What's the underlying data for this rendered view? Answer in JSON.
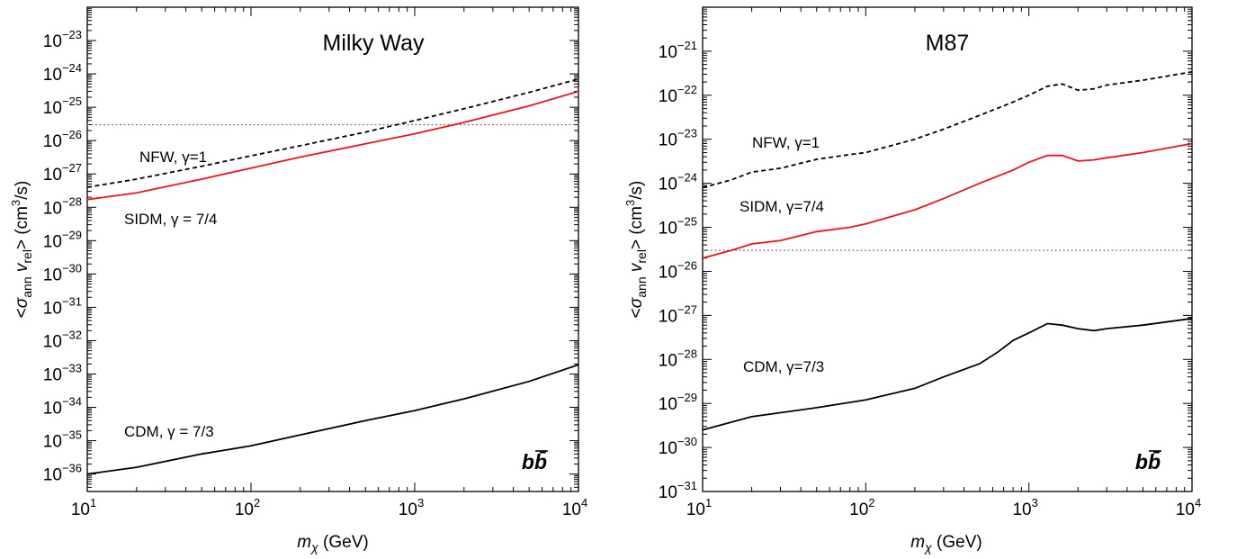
{
  "chart_data": [
    {
      "type": "line",
      "title": "Milky Way",
      "xlabel": "m_χ (GeV)",
      "ylabel": "<σ_ann v_rel> (cm³/s)",
      "x_scale": "log",
      "y_scale": "log",
      "xlim": [
        10,
        10000
      ],
      "ylim": [
        3e-37,
        1e-22
      ],
      "x_ticks": [
        10,
        100,
        1000,
        10000
      ],
      "y_ticks": [
        1e-36,
        1e-35,
        1e-34,
        1e-33,
        1e-32,
        1e-31,
        1e-30,
        1e-29,
        1e-28,
        1e-27,
        1e-26,
        1e-25,
        1e-24,
        1e-23
      ],
      "channel": "bb̄",
      "annotations": [
        {
          "text": "NFW, γ=1",
          "series": "NFW"
        },
        {
          "text": "SIDM, γ = 7/4",
          "series": "SIDM"
        },
        {
          "text": "CDM, γ = 7/3",
          "series": "CDM"
        }
      ],
      "reference_line": {
        "y": 3e-26,
        "style": "dotted",
        "color": "#777777"
      },
      "series": [
        {
          "id": "NFW",
          "style": "dashed",
          "color": "#000000",
          "x": [
            10,
            20,
            50,
            100,
            200,
            500,
            1000,
            2000,
            5000,
            10000
          ],
          "y": [
            4e-28,
            7e-28,
            1.7e-27,
            3.5e-27,
            7e-27,
            1.8e-26,
            4e-26,
            9e-26,
            2.8e-25,
            7e-25
          ]
        },
        {
          "id": "SIDM",
          "style": "solid",
          "color": "#e8141b",
          "x": [
            10,
            20,
            50,
            100,
            200,
            500,
            1000,
            2000,
            5000,
            10000
          ],
          "y": [
            1.7e-28,
            2.7e-28,
            7e-28,
            1.5e-27,
            3.2e-27,
            8e-27,
            1.6e-26,
            3.5e-26,
            1.1e-25,
            3e-25
          ]
        },
        {
          "id": "CDM",
          "style": "solid",
          "color": "#000000",
          "x": [
            10,
            20,
            50,
            100,
            200,
            500,
            1000,
            2000,
            5000,
            10000
          ],
          "y": [
            1e-36,
            1.6e-36,
            4e-36,
            7e-36,
            1.5e-35,
            4e-35,
            8e-35,
            1.8e-34,
            6e-34,
            1.9e-33
          ]
        }
      ]
    },
    {
      "type": "line",
      "title": "M87",
      "xlabel": "m_χ (GeV)",
      "ylabel": "<σ_ann v_rel> (cm³/s)",
      "x_scale": "log",
      "y_scale": "log",
      "xlim": [
        10,
        10000
      ],
      "ylim": [
        1e-31,
        1e-20
      ],
      "x_ticks": [
        10,
        100,
        1000,
        10000
      ],
      "y_ticks": [
        1e-31,
        1e-30,
        1e-29,
        1e-28,
        1e-27,
        1e-26,
        1e-25,
        1e-24,
        1e-23,
        1e-22,
        1e-21
      ],
      "channel": "bb̄",
      "annotations": [
        {
          "text": "NFW, γ=1",
          "series": "NFW"
        },
        {
          "text": "SIDM, γ=7/4",
          "series": "SIDM"
        },
        {
          "text": "CDM, γ=7/3",
          "series": "CDM"
        }
      ],
      "reference_line": {
        "y": 3e-26,
        "style": "dotted",
        "color": "#777777"
      },
      "series": [
        {
          "id": "NFW",
          "style": "dashed",
          "color": "#000000",
          "x": [
            10,
            15,
            20,
            30,
            50,
            80,
            100,
            200,
            300,
            500,
            800,
            1000,
            1300,
            1600,
            2000,
            2500,
            3000,
            5000,
            10000
          ],
          "y": [
            8e-25,
            1.2e-24,
            1.8e-24,
            2.2e-24,
            3.5e-24,
            4.5e-24,
            5e-24,
            1e-23,
            1.7e-23,
            3.5e-23,
            7e-23,
            1e-22,
            1.6e-22,
            1.8e-22,
            1.3e-22,
            1.4e-22,
            1.7e-22,
            2.2e-22,
            3.4e-22
          ]
        },
        {
          "id": "SIDM",
          "style": "solid",
          "color": "#e8141b",
          "x": [
            10,
            15,
            20,
            30,
            50,
            80,
            100,
            200,
            300,
            500,
            800,
            1000,
            1300,
            1600,
            2000,
            2500,
            3000,
            5000,
            10000
          ],
          "y": [
            2e-26,
            3e-26,
            4.2e-26,
            5e-26,
            8e-26,
            1e-25,
            1.2e-25,
            2.5e-25,
            4.5e-25,
            1e-24,
            2e-24,
            3e-24,
            4.3e-24,
            4.3e-24,
            3.2e-24,
            3.4e-24,
            3.8e-24,
            5e-24,
            8e-24
          ]
        },
        {
          "id": "CDM",
          "style": "solid",
          "color": "#000000",
          "x": [
            10,
            20,
            50,
            100,
            200,
            300,
            500,
            650,
            800,
            1000,
            1300,
            1600,
            2000,
            2500,
            3000,
            5000,
            10000
          ],
          "y": [
            2.5e-30,
            5e-30,
            8e-30,
            1.2e-29,
            2.2e-29,
            4e-29,
            8e-29,
            1.5e-28,
            2.7e-28,
            4e-28,
            6.5e-28,
            6e-28,
            5e-28,
            4.5e-28,
            5e-28,
            6e-28,
            8.5e-28
          ]
        }
      ]
    }
  ]
}
